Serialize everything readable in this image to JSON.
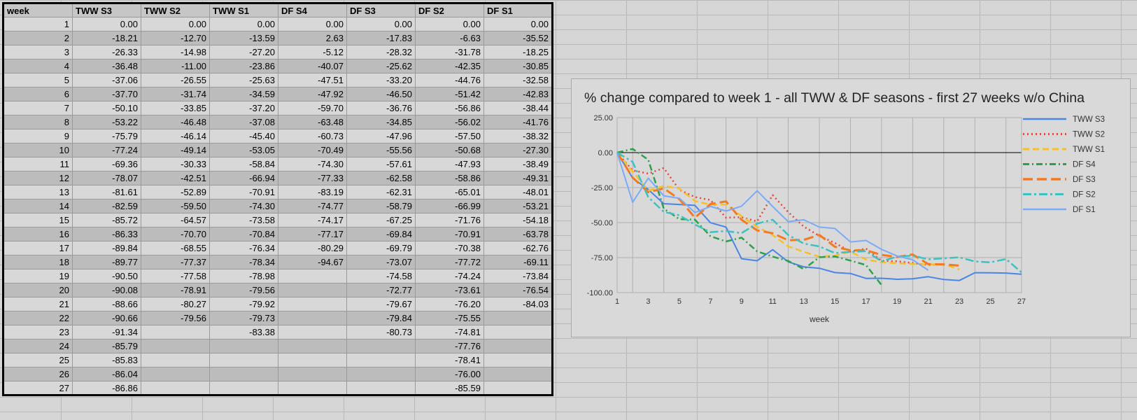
{
  "table": {
    "headers": [
      "week",
      "TWW S3",
      "TWW S2",
      "TWW S1",
      "DF S4",
      "DF S3",
      "DF S2",
      "DF S1"
    ],
    "rows": [
      [
        "1",
        "0.00",
        "0.00",
        "0.00",
        "0.00",
        "0.00",
        "0.00",
        "0.00"
      ],
      [
        "2",
        "-18.21",
        "-12.70",
        "-13.59",
        "2.63",
        "-17.83",
        "-6.63",
        "-35.52"
      ],
      [
        "3",
        "-26.33",
        "-14.98",
        "-27.20",
        "-5.12",
        "-28.32",
        "-31.78",
        "-18.25"
      ],
      [
        "4",
        "-36.48",
        "-11.00",
        "-23.86",
        "-40.07",
        "-25.62",
        "-42.35",
        "-30.85"
      ],
      [
        "5",
        "-37.06",
        "-26.55",
        "-25.63",
        "-47.51",
        "-33.20",
        "-44.76",
        "-32.58"
      ],
      [
        "6",
        "-37.70",
        "-31.74",
        "-34.59",
        "-47.92",
        "-46.50",
        "-51.42",
        "-42.83"
      ],
      [
        "7",
        "-50.10",
        "-33.85",
        "-37.20",
        "-59.70",
        "-36.76",
        "-56.86",
        "-38.44"
      ],
      [
        "8",
        "-53.22",
        "-46.48",
        "-37.08",
        "-63.48",
        "-34.85",
        "-56.02",
        "-41.76"
      ],
      [
        "9",
        "-75.79",
        "-46.14",
        "-45.40",
        "-60.73",
        "-47.96",
        "-57.50",
        "-38.32"
      ],
      [
        "10",
        "-77.24",
        "-49.14",
        "-53.05",
        "-70.49",
        "-55.56",
        "-50.68",
        "-27.30"
      ],
      [
        "11",
        "-69.36",
        "-30.33",
        "-58.84",
        "-74.30",
        "-57.61",
        "-47.93",
        "-38.49"
      ],
      [
        "12",
        "-78.07",
        "-42.51",
        "-66.94",
        "-77.33",
        "-62.58",
        "-58.86",
        "-49.31"
      ],
      [
        "13",
        "-81.61",
        "-52.89",
        "-70.91",
        "-83.19",
        "-62.31",
        "-65.01",
        "-48.01"
      ],
      [
        "14",
        "-82.59",
        "-59.50",
        "-74.30",
        "-74.77",
        "-58.79",
        "-66.99",
        "-53.21"
      ],
      [
        "15",
        "-85.72",
        "-64.57",
        "-73.58",
        "-74.17",
        "-67.25",
        "-71.76",
        "-54.18"
      ],
      [
        "16",
        "-86.33",
        "-70.70",
        "-70.84",
        "-77.17",
        "-69.84",
        "-70.91",
        "-63.78"
      ],
      [
        "17",
        "-89.84",
        "-68.55",
        "-76.34",
        "-80.29",
        "-69.79",
        "-70.38",
        "-62.76"
      ],
      [
        "18",
        "-89.77",
        "-77.37",
        "-78.34",
        "-94.67",
        "-73.07",
        "-77.72",
        "-69.11"
      ],
      [
        "19",
        "-90.50",
        "-77.58",
        "-78.98",
        "",
        "-74.58",
        "-74.24",
        "-73.84"
      ],
      [
        "20",
        "-90.08",
        "-78.91",
        "-79.56",
        "",
        "-72.77",
        "-73.61",
        "-76.54"
      ],
      [
        "21",
        "-88.66",
        "-80.27",
        "-79.92",
        "",
        "-79.67",
        "-76.20",
        "-84.03"
      ],
      [
        "22",
        "-90.66",
        "-79.56",
        "-79.73",
        "",
        "-79.84",
        "-75.55",
        ""
      ],
      [
        "23",
        "-91.34",
        "",
        "-83.38",
        "",
        "-80.73",
        "-74.81",
        ""
      ],
      [
        "24",
        "-85.79",
        "",
        "",
        "",
        "",
        "-77.76",
        ""
      ],
      [
        "25",
        "-85.83",
        "",
        "",
        "",
        "",
        "-78.41",
        ""
      ],
      [
        "26",
        "-86.04",
        "",
        "",
        "",
        "",
        "-76.00",
        ""
      ],
      [
        "27",
        "-86.86",
        "",
        "",
        "",
        "",
        "-85.59",
        ""
      ]
    ]
  },
  "chart_data": {
    "type": "line",
    "title": "% change compared to week 1 - all TWW & DF seasons - first 27 weeks w/o China",
    "xlabel": "week",
    "ylabel": "",
    "x": [
      1,
      2,
      3,
      4,
      5,
      6,
      7,
      8,
      9,
      10,
      11,
      12,
      13,
      14,
      15,
      16,
      17,
      18,
      19,
      20,
      21,
      22,
      23,
      24,
      25,
      26,
      27
    ],
    "xlim": [
      1,
      27
    ],
    "ylim": [
      -100,
      25
    ],
    "xticks": [
      "1",
      "3",
      "5",
      "7",
      "9",
      "11",
      "13",
      "15",
      "17",
      "19",
      "21",
      "23",
      "25",
      "27"
    ],
    "yticks": [
      "25.00",
      "0.00",
      "-25.00",
      "-50.00",
      "-75.00",
      "-100.00"
    ],
    "grid": true,
    "legend_position": "right",
    "series": [
      {
        "name": "TWW S3",
        "color": "#4a86e8",
        "dash": "solid",
        "values": [
          0,
          -18.21,
          -26.33,
          -36.48,
          -37.06,
          -37.7,
          -50.1,
          -53.22,
          -75.79,
          -77.24,
          -69.36,
          -78.07,
          -81.61,
          -82.59,
          -85.72,
          -86.33,
          -89.84,
          -89.77,
          -90.5,
          -90.08,
          -88.66,
          -90.66,
          -91.34,
          -85.79,
          -85.83,
          -86.04,
          -86.86
        ]
      },
      {
        "name": "TWW S2",
        "color": "#e8453c",
        "dash": "dot",
        "values": [
          0,
          -12.7,
          -14.98,
          -11.0,
          -26.55,
          -31.74,
          -33.85,
          -46.48,
          -46.14,
          -49.14,
          -30.33,
          -42.51,
          -52.89,
          -59.5,
          -64.57,
          -70.7,
          -68.55,
          -77.37,
          -77.58,
          -78.91,
          -80.27,
          -79.56,
          null,
          null,
          null,
          null,
          null
        ]
      },
      {
        "name": "TWW S1",
        "color": "#f6c026",
        "dash": "dash",
        "values": [
          0,
          -13.59,
          -27.2,
          -23.86,
          -25.63,
          -34.59,
          -37.2,
          -37.08,
          -45.4,
          -53.05,
          -58.84,
          -66.94,
          -70.91,
          -74.3,
          -73.58,
          -70.84,
          -76.34,
          -78.34,
          -78.98,
          -79.56,
          -79.92,
          -79.73,
          -83.38,
          null,
          null,
          null,
          null
        ]
      },
      {
        "name": "DF S4",
        "color": "#2ea04a",
        "dash": "dashdot",
        "values": [
          0,
          2.63,
          -5.12,
          -40.07,
          -47.51,
          -47.92,
          -59.7,
          -63.48,
          -60.73,
          -70.49,
          -74.3,
          -77.33,
          -83.19,
          -74.77,
          -74.17,
          -77.17,
          -80.29,
          -94.67,
          null,
          null,
          null,
          null,
          null,
          null,
          null,
          null,
          null
        ]
      },
      {
        "name": "DF S3",
        "color": "#f47a1f",
        "dash": "longdash",
        "values": [
          0,
          -17.83,
          -28.32,
          -25.62,
          -33.2,
          -46.5,
          -36.76,
          -34.85,
          -47.96,
          -55.56,
          -57.61,
          -62.58,
          -62.31,
          -58.79,
          -67.25,
          -69.84,
          -69.79,
          -73.07,
          -74.58,
          -72.77,
          -79.67,
          -79.84,
          -80.73,
          null,
          null,
          null,
          null
        ]
      },
      {
        "name": "DF S2",
        "color": "#3fc1c1",
        "dash": "longdashdot",
        "values": [
          0,
          -6.63,
          -31.78,
          -42.35,
          -44.76,
          -51.42,
          -56.86,
          -56.02,
          -57.5,
          -50.68,
          -47.93,
          -58.86,
          -65.01,
          -66.99,
          -71.76,
          -70.91,
          -70.38,
          -77.72,
          -74.24,
          -73.61,
          -76.2,
          -75.55,
          -74.81,
          -77.76,
          -78.41,
          -76.0,
          -85.59
        ]
      },
      {
        "name": "DF S1",
        "color": "#7baaf7",
        "dash": "solid",
        "values": [
          0,
          -35.52,
          -18.25,
          -30.85,
          -32.58,
          -42.83,
          -38.44,
          -41.76,
          -38.32,
          -27.3,
          -38.49,
          -49.31,
          -48.01,
          -53.21,
          -54.18,
          -63.78,
          -62.76,
          -69.11,
          -73.84,
          -76.54,
          -84.03,
          null,
          null,
          null,
          null,
          null,
          null
        ]
      }
    ]
  }
}
